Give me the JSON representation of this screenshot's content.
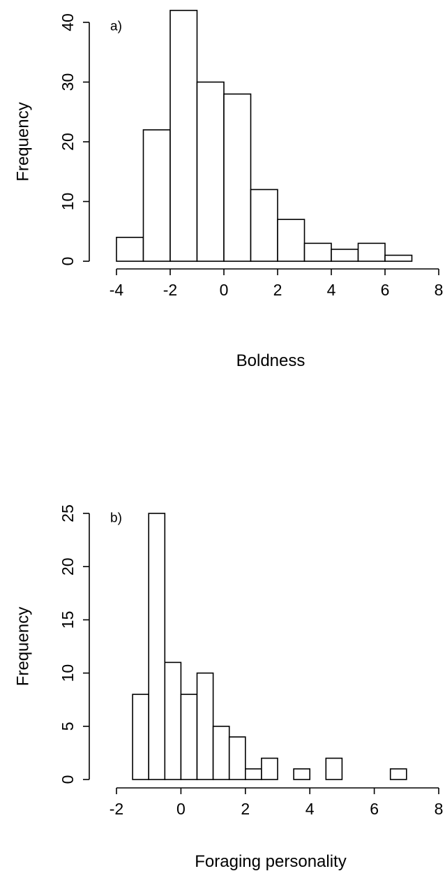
{
  "chart_data": [
    {
      "type": "bar",
      "panel_label": "a)",
      "xlabel": "Boldness",
      "ylabel": "Frequency",
      "xlim": [
        -4,
        8
      ],
      "ylim": [
        0,
        40
      ],
      "x_ticks": [
        "-4",
        "-2",
        "0",
        "2",
        "4",
        "6",
        "8"
      ],
      "y_ticks": [
        "0",
        "10",
        "20",
        "30",
        "40"
      ],
      "bins": [
        {
          "from": -4,
          "to": -3,
          "count": 4
        },
        {
          "from": -3,
          "to": -2,
          "count": 22
        },
        {
          "from": -2,
          "to": -1,
          "count": 42
        },
        {
          "from": -1,
          "to": 0,
          "count": 30
        },
        {
          "from": 0,
          "to": 1,
          "count": 28
        },
        {
          "from": 1,
          "to": 2,
          "count": 12
        },
        {
          "from": 2,
          "to": 3,
          "count": 7
        },
        {
          "from": 3,
          "to": 4,
          "count": 3
        },
        {
          "from": 4,
          "to": 5,
          "count": 2
        },
        {
          "from": 5,
          "to": 6,
          "count": 3
        },
        {
          "from": 6,
          "to": 7,
          "count": 1
        }
      ],
      "grid": false
    },
    {
      "type": "bar",
      "panel_label": "b)",
      "xlabel": "Foraging personality",
      "ylabel": "Frequency",
      "xlim": [
        -2,
        8
      ],
      "ylim": [
        0,
        25
      ],
      "x_ticks": [
        "-2",
        "0",
        "2",
        "4",
        "6",
        "8"
      ],
      "y_ticks": [
        "0",
        "5",
        "10",
        "15",
        "20",
        "25"
      ],
      "bins": [
        {
          "from": -1.5,
          "to": -1.0,
          "count": 8
        },
        {
          "from": -1.0,
          "to": -0.5,
          "count": 25
        },
        {
          "from": -0.5,
          "to": 0.0,
          "count": 11
        },
        {
          "from": 0.0,
          "to": 0.5,
          "count": 8
        },
        {
          "from": 0.5,
          "to": 1.0,
          "count": 10
        },
        {
          "from": 1.0,
          "to": 1.5,
          "count": 5
        },
        {
          "from": 1.5,
          "to": 2.0,
          "count": 4
        },
        {
          "from": 2.0,
          "to": 2.5,
          "count": 1
        },
        {
          "from": 2.5,
          "to": 3.0,
          "count": 2
        },
        {
          "from": 3.0,
          "to": 3.5,
          "count": 0
        },
        {
          "from": 3.5,
          "to": 4.0,
          "count": 1
        },
        {
          "from": 4.0,
          "to": 4.5,
          "count": 0
        },
        {
          "from": 4.5,
          "to": 5.0,
          "count": 2
        },
        {
          "from": 5.0,
          "to": 5.5,
          "count": 0
        },
        {
          "from": 5.5,
          "to": 6.0,
          "count": 0
        },
        {
          "from": 6.0,
          "to": 6.5,
          "count": 0
        },
        {
          "from": 6.5,
          "to": 7.0,
          "count": 1
        }
      ],
      "grid": false
    }
  ]
}
